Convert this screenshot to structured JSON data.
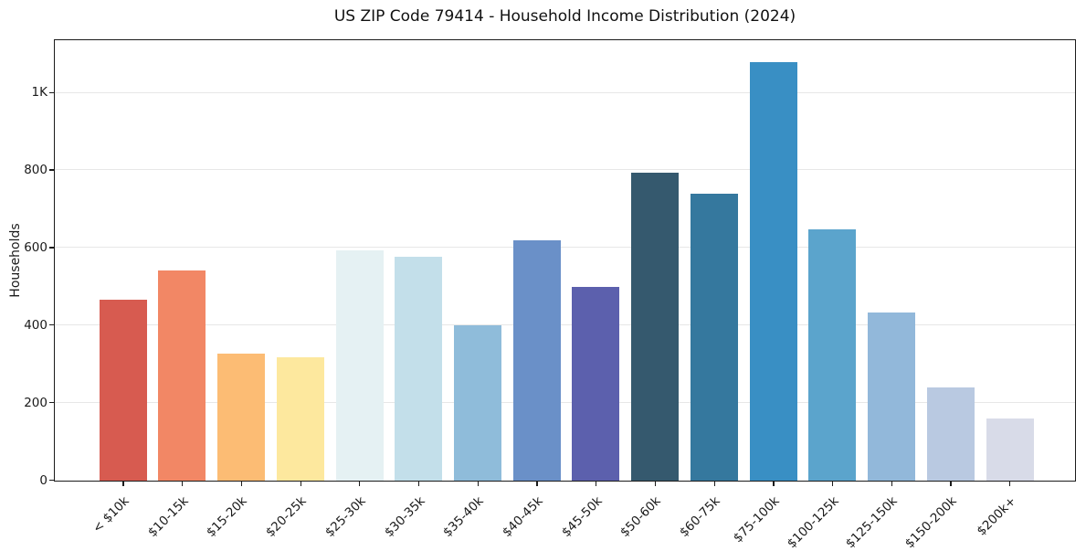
{
  "chart_data": {
    "type": "bar",
    "title": "US ZIP Code 79414 - Household Income Distribution (2024)",
    "xlabel": "",
    "ylabel": "Households",
    "categories": [
      "< $10k",
      "$10-15k",
      "$15-20k",
      "$20-25k",
      "$25-30k",
      "$30-35k",
      "$35-40k",
      "$40-45k",
      "$45-50k",
      "$50-60k",
      "$60-75k",
      "$75-100k",
      "$100-125k",
      "$125-150k",
      "$150-200k",
      "$200k+"
    ],
    "values": [
      466,
      542,
      328,
      318,
      593,
      576,
      400,
      620,
      500,
      795,
      740,
      1080,
      648,
      434,
      240,
      160
    ],
    "bar_colors": [
      "#d75b50",
      "#f28765",
      "#fcbc74",
      "#fde89e",
      "#e5f1f3",
      "#c3dfea",
      "#8fbcda",
      "#6a90c8",
      "#5c60ad",
      "#35596e",
      "#35789e",
      "#398fc4",
      "#5ba4cc",
      "#92b8da",
      "#b9c9e1",
      "#d8dbe8"
    ],
    "ylim": [
      0,
      1134
    ],
    "yticks": [
      {
        "value": 0,
        "label": "0"
      },
      {
        "value": 200,
        "label": "200"
      },
      {
        "value": 400,
        "label": "400"
      },
      {
        "value": 600,
        "label": "600"
      },
      {
        "value": 800,
        "label": "800"
      },
      {
        "value": 1000,
        "label": "1K"
      }
    ],
    "grid": "horizontal",
    "gridline_color": "#e7e7e7",
    "legend": "none",
    "background_color": "#ffffff",
    "axis_color": "#1b1b1b"
  }
}
